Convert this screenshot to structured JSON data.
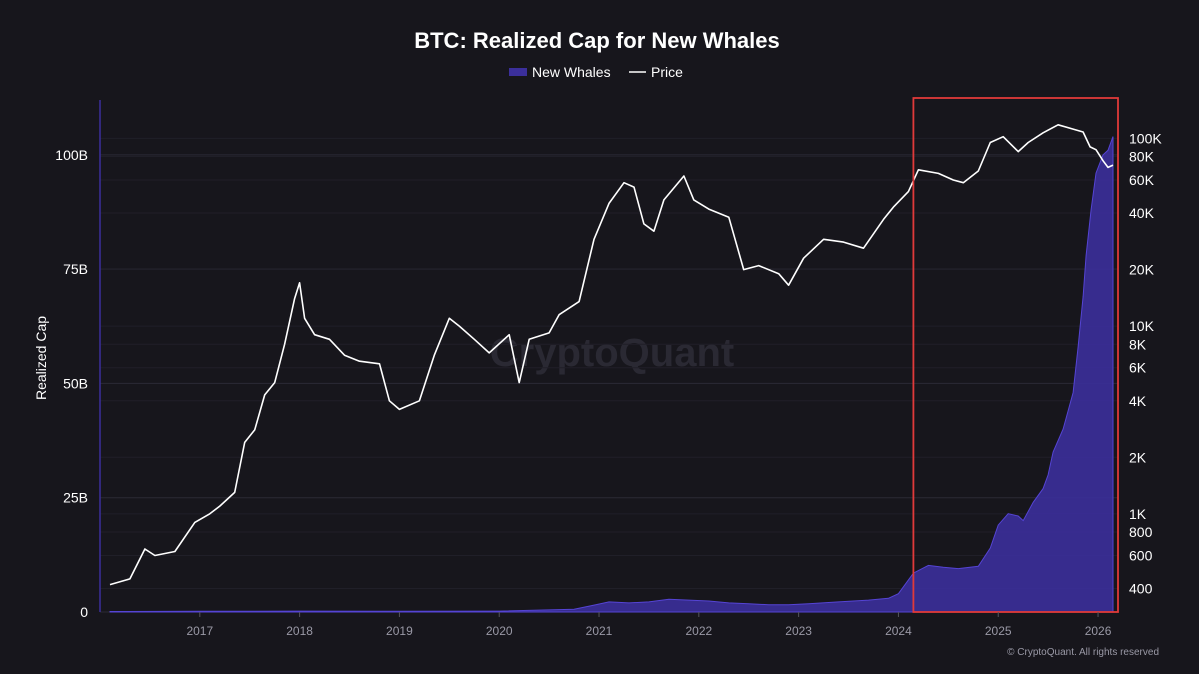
{
  "chart_data": {
    "type": "area+line",
    "title": "BTC: Realized Cap for New Whales",
    "legend": [
      {
        "name": "New Whales",
        "style": "area",
        "color": "#3b2f9b"
      },
      {
        "name": "Price",
        "style": "line",
        "color": "#ffffff"
      }
    ],
    "legend_position": "top-center",
    "ylabel_left": "Realized Cap",
    "ylim_left": [
      0,
      112
    ],
    "yticks_left": [
      {
        "value": 0,
        "label": "0"
      },
      {
        "value": 25,
        "label": "25B"
      },
      {
        "value": 50,
        "label": "50B"
      },
      {
        "value": 75,
        "label": "75B"
      },
      {
        "value": 100,
        "label": "100B"
      }
    ],
    "yscale_right": "log",
    "ylim_right": [
      300,
      160000
    ],
    "yticks_right": [
      {
        "value": 400,
        "label": "400"
      },
      {
        "value": 600,
        "label": "600"
      },
      {
        "value": 800,
        "label": "800"
      },
      {
        "value": 1000,
        "label": "1K"
      },
      {
        "value": 2000,
        "label": "2K"
      },
      {
        "value": 4000,
        "label": "4K"
      },
      {
        "value": 6000,
        "label": "6K"
      },
      {
        "value": 8000,
        "label": "8K"
      },
      {
        "value": 10000,
        "label": "10K"
      },
      {
        "value": 20000,
        "label": "20K"
      },
      {
        "value": 40000,
        "label": "40K"
      },
      {
        "value": 60000,
        "label": "60K"
      },
      {
        "value": 80000,
        "label": "80K"
      },
      {
        "value": 100000,
        "label": "100K"
      }
    ],
    "xlim": [
      2016.0,
      2026.2
    ],
    "xticks": [
      {
        "value": 2017,
        "label": "2017"
      },
      {
        "value": 2018,
        "label": "2018"
      },
      {
        "value": 2019,
        "label": "2019"
      },
      {
        "value": 2020,
        "label": "2020"
      },
      {
        "value": 2021,
        "label": "2021"
      },
      {
        "value": 2022,
        "label": "2022"
      },
      {
        "value": 2023,
        "label": "2023"
      },
      {
        "value": 2024,
        "label": "2024"
      },
      {
        "value": 2025,
        "label": "2025"
      },
      {
        "value": 2026,
        "label": "2026"
      }
    ],
    "grid": true,
    "series": [
      {
        "name": "New Whales",
        "axis": "left",
        "points": [
          [
            2016.1,
            0.1
          ],
          [
            2017.0,
            0.15
          ],
          [
            2018.0,
            0.2
          ],
          [
            2019.0,
            0.15
          ],
          [
            2020.0,
            0.2
          ],
          [
            2020.75,
            0.6
          ],
          [
            2020.95,
            1.5
          ],
          [
            2021.1,
            2.2
          ],
          [
            2021.3,
            2.0
          ],
          [
            2021.5,
            2.2
          ],
          [
            2021.7,
            2.8
          ],
          [
            2021.9,
            2.6
          ],
          [
            2022.1,
            2.4
          ],
          [
            2022.3,
            2.0
          ],
          [
            2022.5,
            1.8
          ],
          [
            2022.7,
            1.6
          ],
          [
            2022.9,
            1.6
          ],
          [
            2023.1,
            1.8
          ],
          [
            2023.4,
            2.2
          ],
          [
            2023.7,
            2.6
          ],
          [
            2023.9,
            3.0
          ],
          [
            2024.0,
            4.0
          ],
          [
            2024.15,
            8.5
          ],
          [
            2024.3,
            10.2
          ],
          [
            2024.45,
            9.8
          ],
          [
            2024.6,
            9.5
          ],
          [
            2024.8,
            10.0
          ],
          [
            2024.92,
            14.0
          ],
          [
            2025.0,
            19.0
          ],
          [
            2025.1,
            21.5
          ],
          [
            2025.2,
            21.0
          ],
          [
            2025.25,
            20.0
          ],
          [
            2025.35,
            24.0
          ],
          [
            2025.45,
            27.0
          ],
          [
            2025.5,
            30.0
          ],
          [
            2025.55,
            35.0
          ],
          [
            2025.65,
            40.0
          ],
          [
            2025.7,
            44.0
          ],
          [
            2025.75,
            48.0
          ],
          [
            2025.8,
            58.0
          ],
          [
            2025.85,
            69.0
          ],
          [
            2025.88,
            78.0
          ],
          [
            2025.93,
            88.0
          ],
          [
            2025.98,
            96.0
          ],
          [
            2026.05,
            100.0
          ],
          [
            2026.1,
            101.0
          ],
          [
            2026.15,
            104.0
          ]
        ]
      },
      {
        "name": "Price",
        "axis": "right",
        "points": [
          [
            2016.1,
            420
          ],
          [
            2016.3,
            450
          ],
          [
            2016.45,
            650
          ],
          [
            2016.55,
            600
          ],
          [
            2016.75,
            630
          ],
          [
            2016.95,
            900
          ],
          [
            2017.1,
            1000
          ],
          [
            2017.2,
            1100
          ],
          [
            2017.35,
            1300
          ],
          [
            2017.45,
            2400
          ],
          [
            2017.55,
            2800
          ],
          [
            2017.65,
            4300
          ],
          [
            2017.75,
            5000
          ],
          [
            2017.85,
            8000
          ],
          [
            2017.95,
            14000
          ],
          [
            2018.0,
            17000
          ],
          [
            2018.05,
            11000
          ],
          [
            2018.15,
            9000
          ],
          [
            2018.3,
            8500
          ],
          [
            2018.45,
            7000
          ],
          [
            2018.6,
            6500
          ],
          [
            2018.8,
            6300
          ],
          [
            2018.9,
            4000
          ],
          [
            2019.0,
            3600
          ],
          [
            2019.2,
            4000
          ],
          [
            2019.35,
            7000
          ],
          [
            2019.5,
            11000
          ],
          [
            2019.6,
            10000
          ],
          [
            2019.75,
            8500
          ],
          [
            2019.9,
            7200
          ],
          [
            2020.1,
            9000
          ],
          [
            2020.2,
            5000
          ],
          [
            2020.3,
            8500
          ],
          [
            2020.5,
            9200
          ],
          [
            2020.6,
            11500
          ],
          [
            2020.8,
            13500
          ],
          [
            2020.95,
            29000
          ],
          [
            2021.1,
            45000
          ],
          [
            2021.25,
            58000
          ],
          [
            2021.35,
            55000
          ],
          [
            2021.45,
            35000
          ],
          [
            2021.55,
            32000
          ],
          [
            2021.65,
            47000
          ],
          [
            2021.85,
            63000
          ],
          [
            2021.95,
            47000
          ],
          [
            2022.1,
            42000
          ],
          [
            2022.3,
            38000
          ],
          [
            2022.45,
            20000
          ],
          [
            2022.6,
            21000
          ],
          [
            2022.8,
            19000
          ],
          [
            2022.9,
            16500
          ],
          [
            2023.05,
            23000
          ],
          [
            2023.25,
            29000
          ],
          [
            2023.45,
            28000
          ],
          [
            2023.65,
            26000
          ],
          [
            2023.85,
            37000
          ],
          [
            2023.95,
            43000
          ],
          [
            2024.1,
            52000
          ],
          [
            2024.2,
            68000
          ],
          [
            2024.4,
            65000
          ],
          [
            2024.55,
            60000
          ],
          [
            2024.65,
            58000
          ],
          [
            2024.8,
            67000
          ],
          [
            2024.92,
            95000
          ],
          [
            2025.05,
            102000
          ],
          [
            2025.2,
            85000
          ],
          [
            2025.3,
            95000
          ],
          [
            2025.45,
            107000
          ],
          [
            2025.6,
            118000
          ],
          [
            2025.75,
            112000
          ],
          [
            2025.85,
            108000
          ],
          [
            2025.92,
            90000
          ],
          [
            2025.98,
            87000
          ],
          [
            2026.05,
            76000
          ],
          [
            2026.1,
            70000
          ],
          [
            2026.15,
            72000
          ]
        ]
      }
    ],
    "annotations": [
      {
        "type": "rectangle",
        "x_range": [
          2024.15,
          2026.2
        ],
        "color": "#e03a3a"
      }
    ],
    "watermark": "CryptoQuant",
    "footer": "© CryptoQuant. All rights reserved"
  }
}
